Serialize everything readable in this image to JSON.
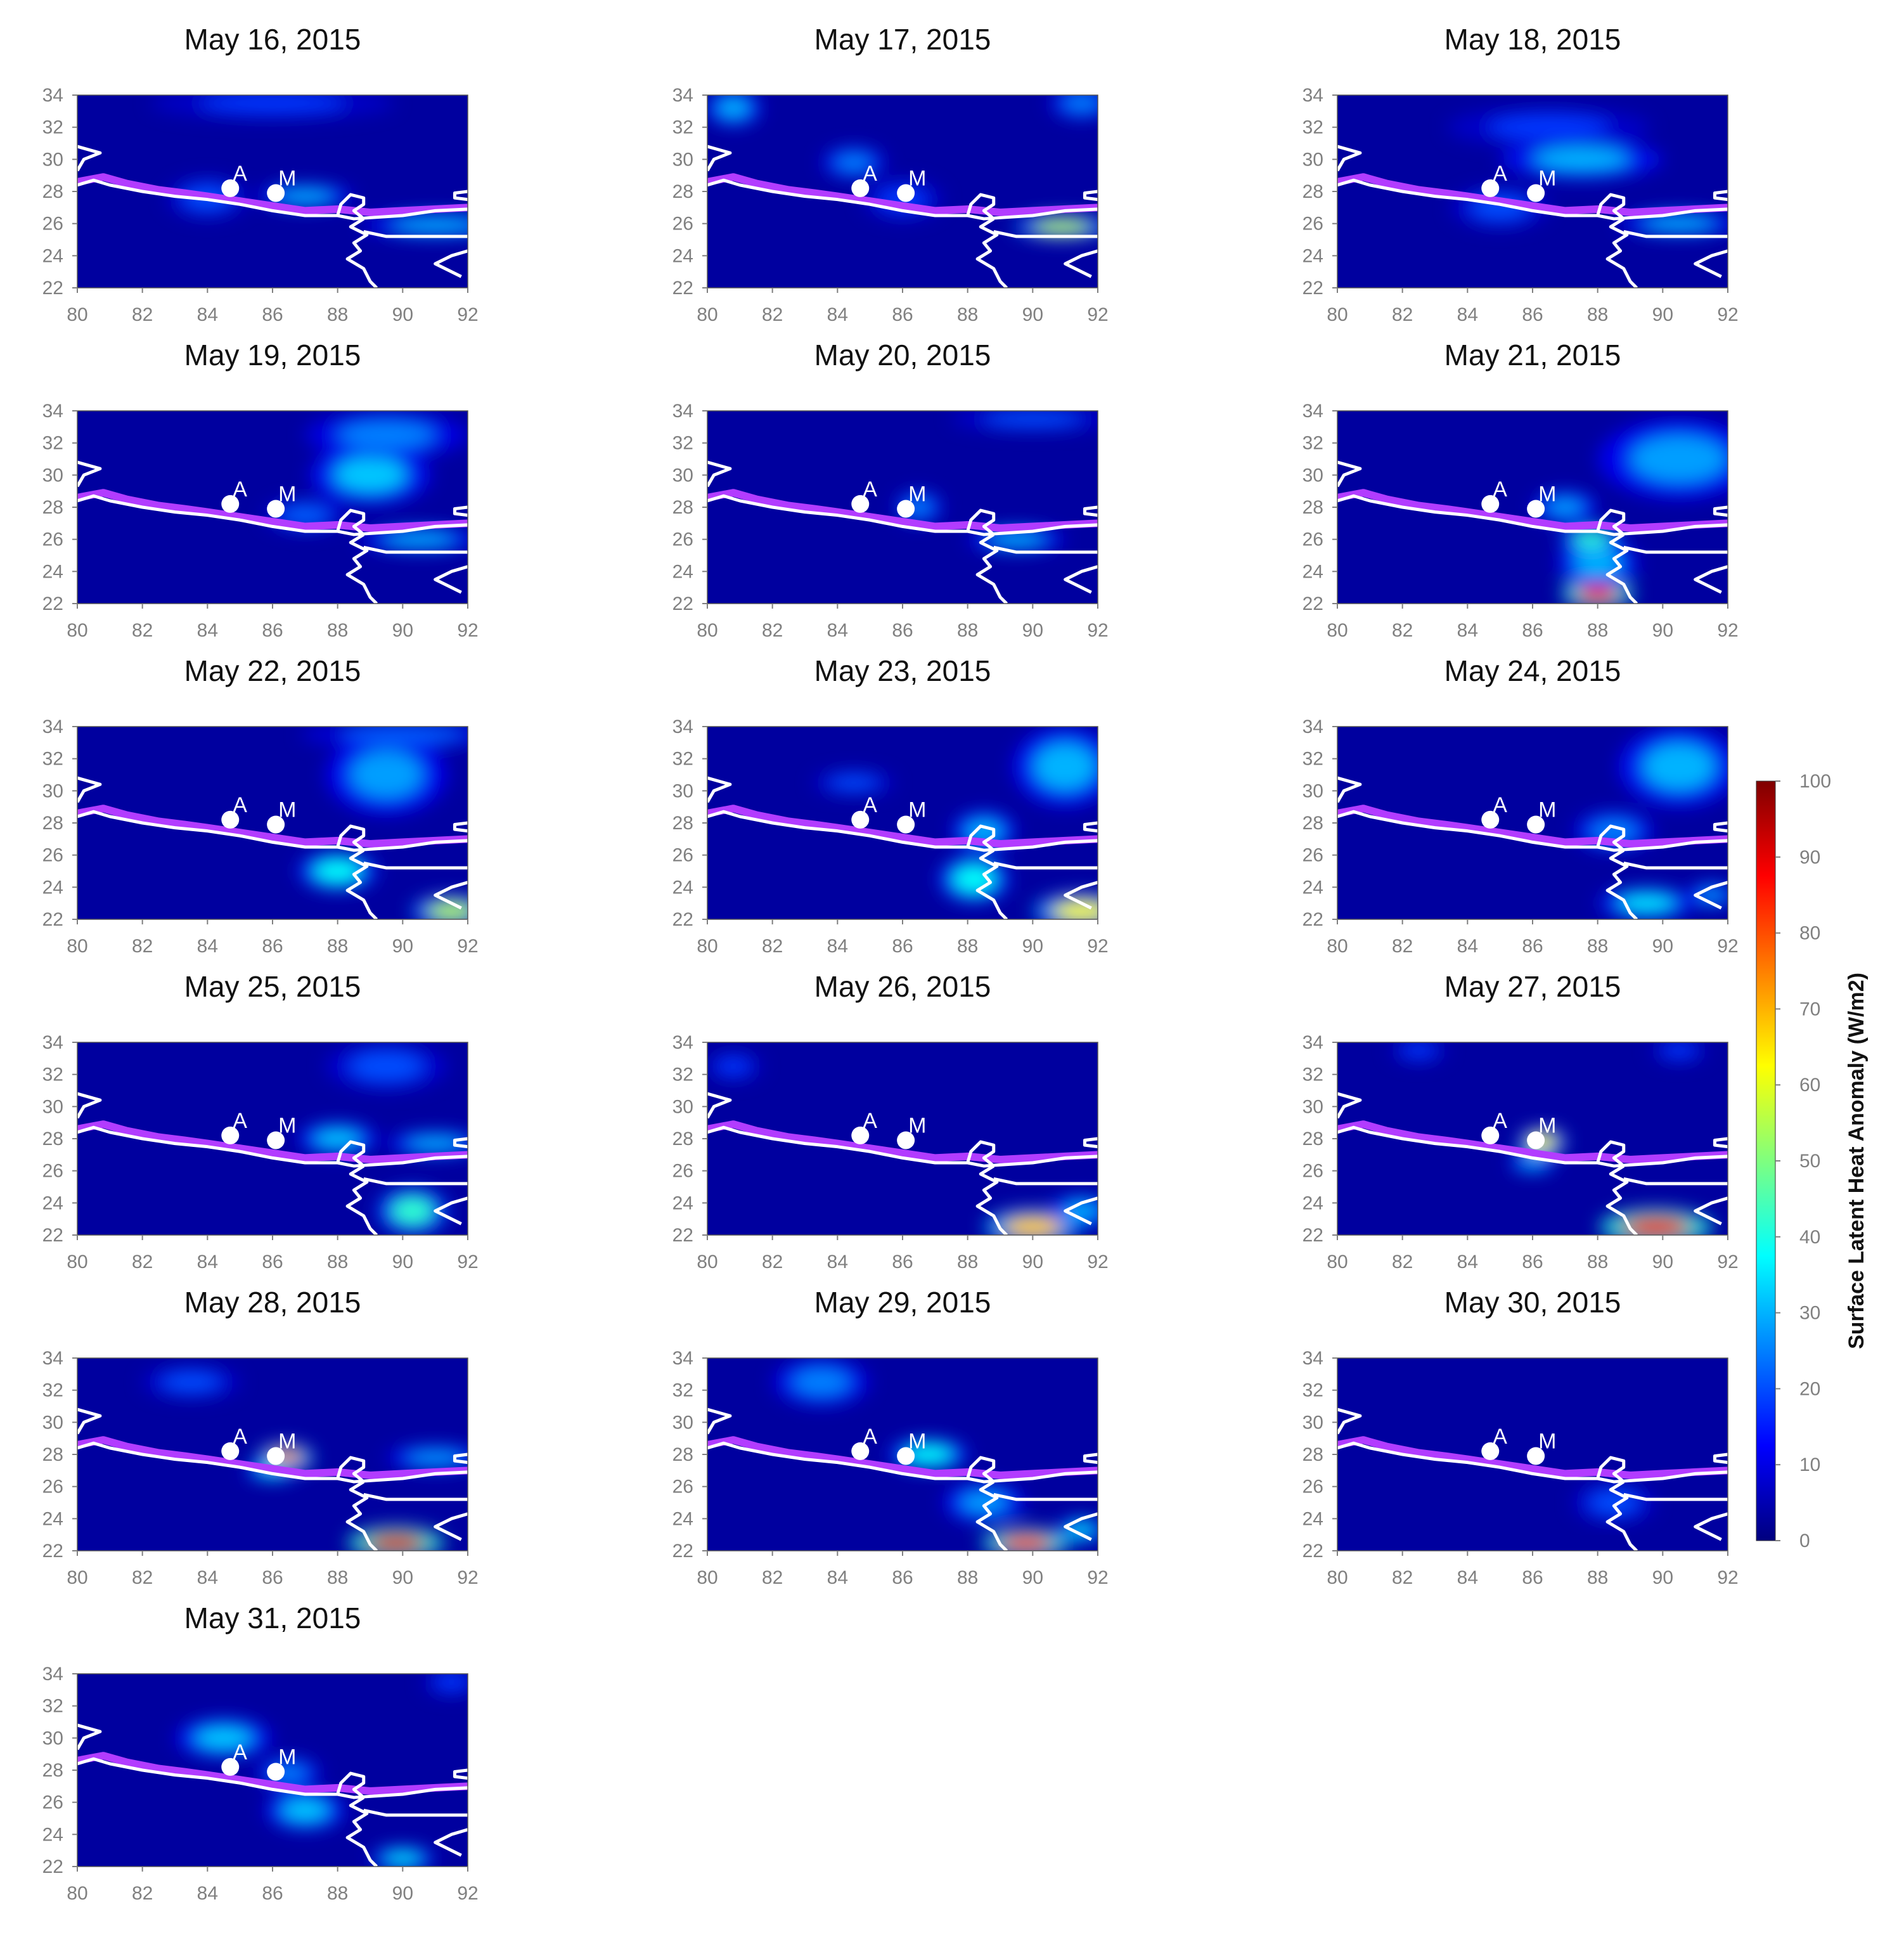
{
  "chart_data": {
    "type": "heatmap",
    "panel_titles": [
      "May 16, 2015",
      "May 17, 2015",
      "May 18, 2015",
      "May 19, 2015",
      "May 20, 2015",
      "May 21, 2015",
      "May 22, 2015",
      "May 23, 2015",
      "May 24, 2015",
      "May 25, 2015",
      "May 26, 2015",
      "May 27, 2015",
      "May 28, 2015",
      "May 29, 2015",
      "May 30, 2015",
      "May 31, 2015"
    ],
    "xlim": [
      80,
      92
    ],
    "ylim": [
      22,
      34
    ],
    "x_ticks": [
      "80",
      "82",
      "84",
      "86",
      "88",
      "90",
      "92"
    ],
    "y_ticks": [
      "22",
      "24",
      "26",
      "28",
      "30",
      "32",
      "34"
    ],
    "sites": [
      {
        "label": "A",
        "lon": 84.7,
        "lat": 28.2
      },
      {
        "label": "M",
        "lon": 86.1,
        "lat": 27.9
      }
    ],
    "colorbar": {
      "label": "Surface Latent Heat Anomaly (W/m2)",
      "min": 0,
      "max": 100,
      "ticks": [
        "0",
        "10",
        "20",
        "30",
        "40",
        "50",
        "60",
        "70",
        "80",
        "90",
        "100"
      ],
      "colormap": "jet"
    },
    "anomalies": [
      [
        {
          "lon": 84,
          "lat": 27.6,
          "value": 20,
          "sx": 1,
          "sy": 1
        },
        {
          "lon": 87,
          "lat": 27.7,
          "value": 30,
          "sx": 1.2,
          "sy": 0.6
        },
        {
          "lon": 91,
          "lat": 25.9,
          "value": 30,
          "sx": 1.8,
          "sy": 0.6
        },
        {
          "lon": 86,
          "lat": 33.5,
          "value": 18,
          "sx": 3,
          "sy": 0.8
        }
      ],
      [
        {
          "lon": 80.8,
          "lat": 33.2,
          "value": 30,
          "sx": 0.7,
          "sy": 0.9
        },
        {
          "lon": 84.5,
          "lat": 29.8,
          "value": 25,
          "sx": 0.8,
          "sy": 0.8
        },
        {
          "lon": 90.9,
          "lat": 25.8,
          "value": 55,
          "sx": 1.2,
          "sy": 0.6
        },
        {
          "lon": 91.5,
          "lat": 33.5,
          "value": 25,
          "sx": 0.8,
          "sy": 0.8
        },
        {
          "lon": 86,
          "lat": 27.5,
          "value": 18,
          "sx": 1,
          "sy": 1
        }
      ],
      [
        {
          "lon": 87.5,
          "lat": 30,
          "value": 30,
          "sx": 2,
          "sy": 1
        },
        {
          "lon": 85,
          "lat": 27,
          "value": 20,
          "sx": 1.2,
          "sy": 1
        },
        {
          "lon": 90.5,
          "lat": 26,
          "value": 30,
          "sx": 1.5,
          "sy": 0.6
        },
        {
          "lon": 86.5,
          "lat": 32,
          "value": 18,
          "sx": 2.5,
          "sy": 1
        }
      ],
      [
        {
          "lon": 89,
          "lat": 30,
          "value": 32,
          "sx": 1.5,
          "sy": 1.5
        },
        {
          "lon": 89.5,
          "lat": 32.5,
          "value": 25,
          "sx": 2,
          "sy": 1.2
        },
        {
          "lon": 87,
          "lat": 27.5,
          "value": 22,
          "sx": 1,
          "sy": 0.8
        },
        {
          "lon": 90.5,
          "lat": 26,
          "value": 30,
          "sx": 1.5,
          "sy": 0.6
        }
      ],
      [
        {
          "lon": 86.5,
          "lat": 28,
          "value": 25,
          "sx": 0.6,
          "sy": 0.8
        },
        {
          "lon": 89.5,
          "lat": 26,
          "value": 30,
          "sx": 1.2,
          "sy": 0.6
        },
        {
          "lon": 90,
          "lat": 33.5,
          "value": 20,
          "sx": 2,
          "sy": 0.6
        }
      ],
      [
        {
          "lon": 88,
          "lat": 22.6,
          "value": 88,
          "sx": 0.9,
          "sy": 0.7
        },
        {
          "lon": 88,
          "lat": 24.5,
          "value": 30,
          "sx": 1,
          "sy": 1.2
        },
        {
          "lon": 87.8,
          "lat": 26,
          "value": 42,
          "sx": 0.8,
          "sy": 0.7
        },
        {
          "lon": 90.5,
          "lat": 31,
          "value": 28,
          "sx": 2,
          "sy": 2
        },
        {
          "lon": 87,
          "lat": 28,
          "value": 28,
          "sx": 0.8,
          "sy": 0.8
        }
      ],
      [
        {
          "lon": 88,
          "lat": 25,
          "value": 38,
          "sx": 1,
          "sy": 1
        },
        {
          "lon": 89.5,
          "lat": 31,
          "value": 28,
          "sx": 1.5,
          "sy": 2
        },
        {
          "lon": 91.5,
          "lat": 22.5,
          "value": 55,
          "sx": 1,
          "sy": 0.8
        },
        {
          "lon": 90,
          "lat": 33.5,
          "value": 22,
          "sx": 2.5,
          "sy": 0.7
        }
      ],
      [
        {
          "lon": 91.5,
          "lat": 22.5,
          "value": 62,
          "sx": 1.2,
          "sy": 0.9
        },
        {
          "lon": 88.2,
          "lat": 24.5,
          "value": 38,
          "sx": 0.9,
          "sy": 1.2
        },
        {
          "lon": 91,
          "lat": 31.5,
          "value": 30,
          "sx": 1.3,
          "sy": 2
        },
        {
          "lon": 88.5,
          "lat": 27.5,
          "value": 30,
          "sx": 0.8,
          "sy": 1
        },
        {
          "lon": 84.5,
          "lat": 30.5,
          "value": 20,
          "sx": 1,
          "sy": 0.6
        }
      ],
      [
        {
          "lon": 89.5,
          "lat": 23,
          "value": 35,
          "sx": 1.2,
          "sy": 0.8
        },
        {
          "lon": 90.5,
          "lat": 31.5,
          "value": 30,
          "sx": 1.5,
          "sy": 2
        },
        {
          "lon": 88.5,
          "lat": 27.5,
          "value": 25,
          "sx": 1,
          "sy": 1
        },
        {
          "lon": 91.5,
          "lat": 23.5,
          "value": 28,
          "sx": 0.6,
          "sy": 0.6
        }
      ],
      [
        {
          "lon": 88,
          "lat": 28,
          "value": 32,
          "sx": 1,
          "sy": 0.8
        },
        {
          "lon": 90.3,
          "lat": 23.5,
          "value": 42,
          "sx": 0.9,
          "sy": 1.2
        },
        {
          "lon": 91,
          "lat": 27.7,
          "value": 30,
          "sx": 1.2,
          "sy": 0.6
        },
        {
          "lon": 89.5,
          "lat": 32.5,
          "value": 20,
          "sx": 1.5,
          "sy": 1.2
        }
      ],
      [
        {
          "lon": 90,
          "lat": 22.5,
          "value": 68,
          "sx": 1.2,
          "sy": 0.9
        },
        {
          "lon": 91.5,
          "lat": 23.5,
          "value": 30,
          "sx": 0.8,
          "sy": 0.8
        },
        {
          "lon": 80.8,
          "lat": 32.5,
          "value": 18,
          "sx": 0.7,
          "sy": 0.7
        }
      ],
      [
        {
          "lon": 89.8,
          "lat": 22.5,
          "value": 90,
          "sx": 1.4,
          "sy": 0.9
        },
        {
          "lon": 86.3,
          "lat": 27.8,
          "value": 62,
          "sx": 0.6,
          "sy": 0.7
        },
        {
          "lon": 86,
          "lat": 26.5,
          "value": 30,
          "sx": 0.6,
          "sy": 0.5
        },
        {
          "lon": 82.5,
          "lat": 33.5,
          "value": 18,
          "sx": 0.7,
          "sy": 0.6
        },
        {
          "lon": 90.5,
          "lat": 33.5,
          "value": 18,
          "sx": 0.7,
          "sy": 0.6
        }
      ],
      [
        {
          "lon": 86.4,
          "lat": 27.8,
          "value": 72,
          "sx": 0.7,
          "sy": 0.7
        },
        {
          "lon": 86,
          "lat": 27,
          "value": 35,
          "sx": 0.7,
          "sy": 0.5
        },
        {
          "lon": 89.8,
          "lat": 22.5,
          "value": 92,
          "sx": 1.2,
          "sy": 0.8
        },
        {
          "lon": 91,
          "lat": 27.8,
          "value": 28,
          "sx": 1.2,
          "sy": 0.6
        },
        {
          "lon": 83.5,
          "lat": 32.5,
          "value": 20,
          "sx": 1.2,
          "sy": 0.8
        }
      ],
      [
        {
          "lon": 86.8,
          "lat": 28,
          "value": 38,
          "sx": 1,
          "sy": 0.8
        },
        {
          "lon": 89.8,
          "lat": 22.5,
          "value": 88,
          "sx": 1.1,
          "sy": 0.7
        },
        {
          "lon": 88.5,
          "lat": 25,
          "value": 28,
          "sx": 1,
          "sy": 1
        },
        {
          "lon": 83.5,
          "lat": 32.5,
          "value": 25,
          "sx": 1.2,
          "sy": 1.2
        },
        {
          "lon": 91.5,
          "lat": 23.3,
          "value": 35,
          "sx": 0.6,
          "sy": 0.6
        }
      ],
      [
        {
          "lon": 88.5,
          "lat": 25,
          "value": 20,
          "sx": 1,
          "sy": 1
        }
      ],
      [
        {
          "lon": 84.5,
          "lat": 30,
          "value": 32,
          "sx": 1.2,
          "sy": 1
        },
        {
          "lon": 87,
          "lat": 25.5,
          "value": 32,
          "sx": 1,
          "sy": 1
        },
        {
          "lon": 90,
          "lat": 22.5,
          "value": 35,
          "sx": 0.8,
          "sy": 0.6
        },
        {
          "lon": 86.5,
          "lat": 27.8,
          "value": 25,
          "sx": 0.8,
          "sy": 0.8
        },
        {
          "lon": 91.5,
          "lat": 33.5,
          "value": 18,
          "sx": 0.7,
          "sy": 0.7
        }
      ]
    ],
    "boundaries": {
      "himalaya_front": [
        [
          80,
          28.6
        ],
        [
          80.8,
          28.9
        ],
        [
          81.5,
          28.5
        ],
        [
          82.5,
          28.1
        ],
        [
          83.3,
          27.9
        ],
        [
          84,
          27.7
        ],
        [
          85,
          27.4
        ],
        [
          86,
          27.1
        ],
        [
          87,
          26.8
        ],
        [
          88,
          26.9
        ],
        [
          89,
          26.7
        ],
        [
          90,
          26.8
        ],
        [
          91,
          26.9
        ],
        [
          92,
          27
        ]
      ],
      "nepal_border": [
        [
          80,
          28.4
        ],
        [
          80.5,
          28.7
        ],
        [
          81,
          28.4
        ],
        [
          82,
          28
        ],
        [
          83,
          27.7
        ],
        [
          84,
          27.5
        ],
        [
          85,
          27.2
        ],
        [
          86,
          26.8
        ],
        [
          87,
          26.5
        ],
        [
          88,
          26.5
        ]
      ],
      "nepal_west": [
        [
          80,
          29.3
        ],
        [
          80.2,
          30
        ],
        [
          80.7,
          30.4
        ],
        [
          80,
          30.8
        ]
      ],
      "east_border": [
        [
          88,
          26.5
        ],
        [
          88.5,
          26.3
        ],
        [
          90,
          26.5
        ],
        [
          91,
          26.8
        ],
        [
          92,
          26.9
        ]
      ],
      "sikkim": [
        [
          88,
          26.5
        ],
        [
          88.1,
          27.2
        ],
        [
          88.4,
          27.8
        ],
        [
          88.8,
          27.6
        ],
        [
          88.8,
          27.2
        ],
        [
          88.5,
          26.8
        ],
        [
          88.8,
          26.3
        ]
      ],
      "bangladesh_west": [
        [
          88.8,
          26.3
        ],
        [
          88.4,
          25.8
        ],
        [
          88.9,
          25.3
        ],
        [
          88.5,
          24.8
        ],
        [
          88.7,
          24.3
        ],
        [
          88.3,
          23.8
        ],
        [
          88.8,
          23.2
        ],
        [
          89,
          22.4
        ],
        [
          89.2,
          22
        ]
      ],
      "bangladesh_north": [
        [
          88.8,
          25.5
        ],
        [
          89.5,
          25.2
        ],
        [
          90.5,
          25.2
        ],
        [
          92,
          25.2
        ]
      ],
      "east_lower": [
        [
          92,
          24.3
        ],
        [
          91.5,
          24
        ],
        [
          91,
          23.5
        ],
        [
          91.5,
          23
        ],
        [
          91.8,
          22.7
        ]
      ],
      "east_edge": [
        [
          92,
          27.5
        ],
        [
          91.6,
          27.6
        ],
        [
          91.6,
          27.9
        ],
        [
          92,
          28
        ]
      ]
    }
  }
}
